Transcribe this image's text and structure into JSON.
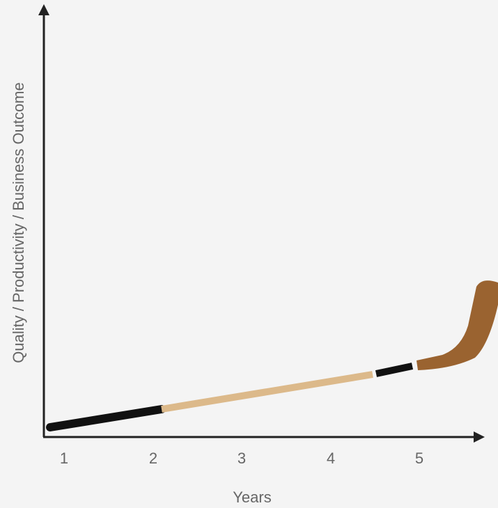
{
  "y_axis": {
    "label": "Quality / Productivity / Business Outcome"
  },
  "x_axis": {
    "label": "Years",
    "ticks": [
      "1",
      "2",
      "3",
      "4",
      "5"
    ]
  }
}
